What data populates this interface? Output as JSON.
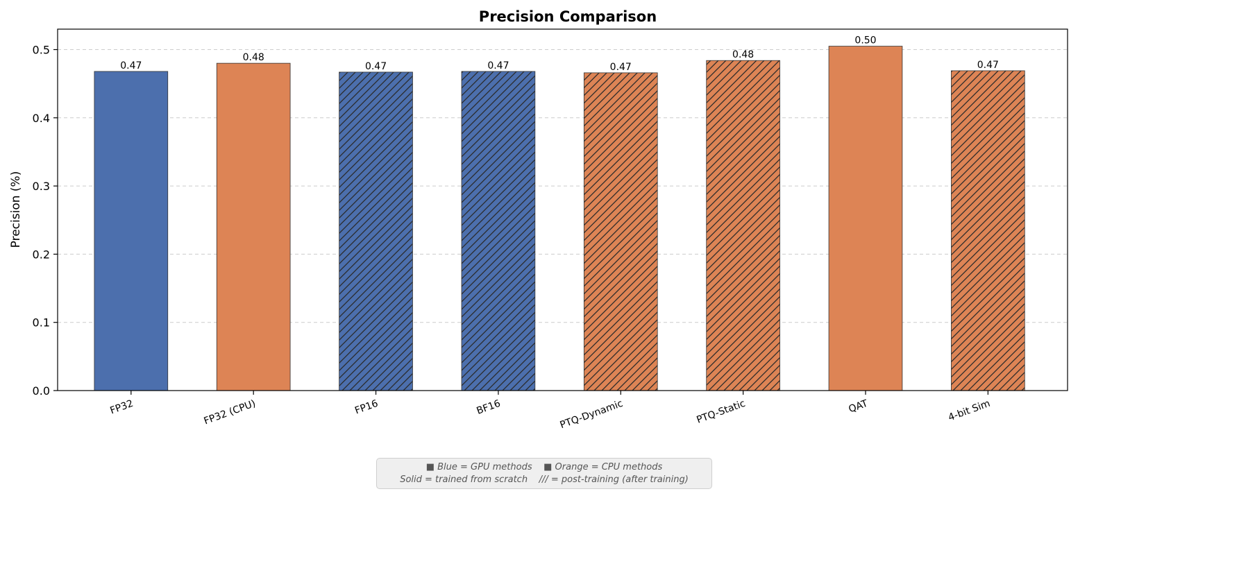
{
  "chart_data": {
    "type": "bar",
    "title": "Precision Comparison",
    "xlabel": "",
    "ylabel": "Precision (%)",
    "ylim": [
      0,
      0.53
    ],
    "yticks": [
      "0.0",
      "0.1",
      "0.2",
      "0.3",
      "0.4",
      "0.5"
    ],
    "grid": "y-dashed",
    "categories": [
      "FP32",
      "FP32 (CPU)",
      "FP16",
      "BF16",
      "PTQ-Dynamic",
      "PTQ-Static",
      "QAT",
      "4-bit Sim"
    ],
    "values": [
      0.468,
      0.48,
      0.467,
      0.468,
      0.466,
      0.484,
      0.505,
      0.469
    ],
    "labels": [
      "0.47",
      "0.48",
      "0.47",
      "0.47",
      "0.47",
      "0.48",
      "0.50",
      "0.47"
    ],
    "device": [
      "GPU",
      "CPU",
      "GPU",
      "GPU",
      "CPU",
      "CPU",
      "CPU",
      "CPU"
    ],
    "hatched": [
      false,
      false,
      true,
      true,
      true,
      true,
      false,
      true
    ],
    "colors": {
      "GPU": "#4c6fad",
      "CPU": "#dd8455",
      "edge": "#333333",
      "hatch": "#2a2a2a"
    }
  },
  "note": {
    "line1": "■ Blue = GPU methods    ■ Orange = CPU methods",
    "line2": "Solid = trained from scratch    /// = post-training (after training)"
  }
}
